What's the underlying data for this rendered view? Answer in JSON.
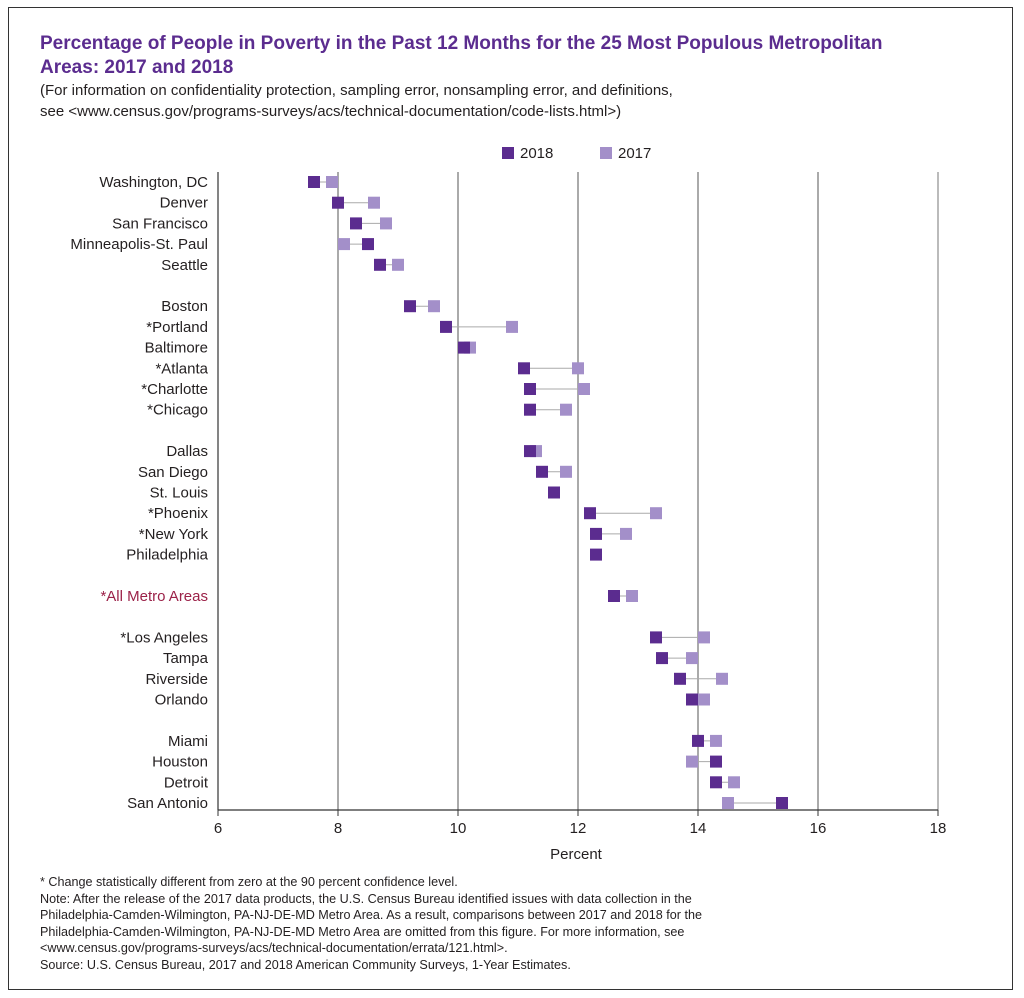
{
  "title": "Percentage of People in Poverty in the Past 12 Months for the 25 Most Populous Metropolitan Areas: 2017 and 2018",
  "subtitle_lines": [
    "(For information on confidentiality protection, sampling error, nonsampling error, and definitions,",
    "see <www.census.gov/programs-surveys/acs/technical-documentation/code-lists.html>)"
  ],
  "colors": {
    "series_2018": "#5b2c8f",
    "series_2017": "#a38fc9",
    "highlight": "#9b2148",
    "grid": "#555555",
    "connector": "#aaaaaa"
  },
  "chart_data": {
    "type": "scatter",
    "title": "Percentage of People in Poverty in the Past 12 Months for the 25 Most Populous Metropolitan Areas: 2017 and 2018",
    "xlabel": "Percent",
    "ylabel": "",
    "xlim": [
      6,
      18
    ],
    "xticks": [
      6,
      8,
      10,
      12,
      14,
      16,
      18
    ],
    "grid": "vertical",
    "legend_position": "top",
    "legend": [
      "2018",
      "2017"
    ],
    "series_names": [
      "2018",
      "2017"
    ],
    "categories": [
      {
        "label": "Washington, DC",
        "v2018": 7.6,
        "v2017": 7.9,
        "group": 0
      },
      {
        "label": "Denver",
        "v2018": 8.0,
        "v2017": 8.6,
        "group": 0
      },
      {
        "label": "San Francisco",
        "v2018": 8.3,
        "v2017": 8.8,
        "group": 0
      },
      {
        "label": "Minneapolis-St. Paul",
        "v2018": 8.5,
        "v2017": 8.1,
        "group": 0
      },
      {
        "label": "Seattle",
        "v2018": 8.7,
        "v2017": 9.0,
        "group": 0
      },
      {
        "label": "Boston",
        "v2018": 9.2,
        "v2017": 9.6,
        "group": 1
      },
      {
        "label": "*Portland",
        "v2018": 9.8,
        "v2017": 10.9,
        "group": 1
      },
      {
        "label": "Baltimore",
        "v2018": 10.1,
        "v2017": 10.2,
        "group": 1
      },
      {
        "label": "*Atlanta",
        "v2018": 11.1,
        "v2017": 12.0,
        "group": 1
      },
      {
        "label": "*Charlotte",
        "v2018": 11.2,
        "v2017": 12.1,
        "group": 1
      },
      {
        "label": "*Chicago",
        "v2018": 11.2,
        "v2017": 11.8,
        "group": 1
      },
      {
        "label": "Dallas",
        "v2018": 11.2,
        "v2017": 11.3,
        "group": 2
      },
      {
        "label": "San Diego",
        "v2018": 11.4,
        "v2017": 11.8,
        "group": 2
      },
      {
        "label": "St. Louis",
        "v2018": 11.6,
        "v2017": 11.6,
        "group": 2
      },
      {
        "label": "*Phoenix",
        "v2018": 12.2,
        "v2017": 13.3,
        "group": 2
      },
      {
        "label": "*New York",
        "v2018": 12.3,
        "v2017": 12.8,
        "group": 2
      },
      {
        "label": "Philadelphia",
        "v2018": 12.3,
        "v2017": null,
        "group": 2
      },
      {
        "label": "*All Metro Areas",
        "v2018": 12.6,
        "v2017": 12.9,
        "group": 3,
        "highlight": true
      },
      {
        "label": "*Los Angeles",
        "v2018": 13.3,
        "v2017": 14.1,
        "group": 4
      },
      {
        "label": "Tampa",
        "v2018": 13.4,
        "v2017": 13.9,
        "group": 4
      },
      {
        "label": "Riverside",
        "v2018": 13.7,
        "v2017": 14.4,
        "group": 4
      },
      {
        "label": "Orlando",
        "v2018": 13.9,
        "v2017": 14.1,
        "group": 4
      },
      {
        "label": "Miami",
        "v2018": 14.0,
        "v2017": 14.3,
        "group": 5
      },
      {
        "label": "Houston",
        "v2018": 14.3,
        "v2017": 13.9,
        "group": 5
      },
      {
        "label": "Detroit",
        "v2018": 14.3,
        "v2017": 14.6,
        "group": 5
      },
      {
        "label": "San Antonio",
        "v2018": 15.4,
        "v2017": 14.5,
        "group": 5
      }
    ]
  },
  "notes": [
    "* Change statistically different from zero at the 90 percent confidence level.",
    "Note: After the release of the 2017 data products, the U.S. Census Bureau identified issues with data collection in the",
    "Philadelphia-Camden-Wilmington, PA-NJ-DE-MD Metro Area. As a result, comparisons between 2017 and 2018 for the",
    "Philadelphia-Camden-Wilmington, PA-NJ-DE-MD Metro Area are omitted from this figure. For more information, see",
    "<www.census.gov/programs-surveys/acs/technical-documentation/errata/121.html>.",
    "Source: U.S. Census Bureau, 2017 and 2018 American Community Surveys, 1-Year Estimates."
  ]
}
